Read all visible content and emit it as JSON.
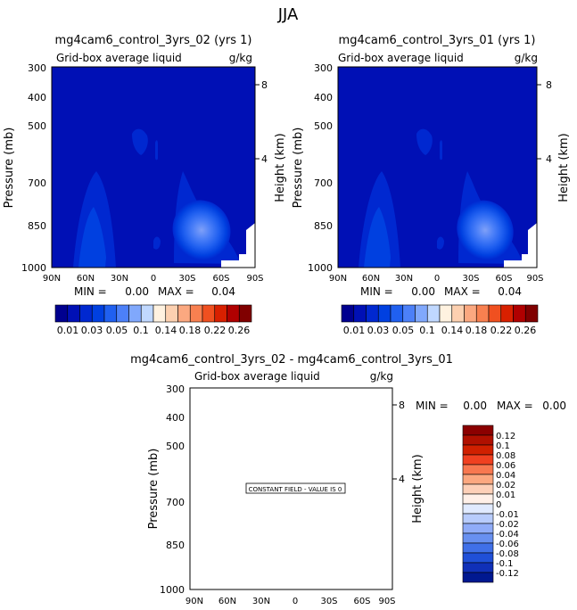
{
  "figure": {
    "title": "JJA",
    "diff_title": "mg4cam6_control_3yrs_02 - mg4cam6_control_3yrs_01"
  },
  "colors": {
    "scale12": [
      "#00008f",
      "#0010b5",
      "#0028d0",
      "#0040e0",
      "#2060f0",
      "#4c80f8",
      "#80a8fc",
      "#c0d8ff",
      "#fff2e0",
      "#fcd0b0",
      "#fba880",
      "#f88050",
      "#f05020",
      "#d82000",
      "#b00000",
      "#800000"
    ],
    "diff": [
      "#8b0000",
      "#b01000",
      "#d02000",
      "#f04020",
      "#f87850",
      "#fca880",
      "#fdd0b8",
      "#fff0e8",
      "#e0eaff",
      "#b8ccfc",
      "#90acf8",
      "#6890f0",
      "#4070e8",
      "#2050d8",
      "#1030b8",
      "#001890"
    ]
  },
  "chart_data": [
    {
      "type": "heatmap",
      "title": "mg4cam6_control_3yrs_02 (yrs 1)",
      "subtitle": "Grid-box average liquid",
      "units": "g/kg",
      "ylabel": "Pressure (mb)",
      "y2label": "Height (km)",
      "x_ticks": [
        "90N",
        "60N",
        "30N",
        "0",
        "30S",
        "60S",
        "90S"
      ],
      "y_ticks": [
        "300",
        "400",
        "500",
        "700",
        "850",
        "1000"
      ],
      "y2_ticks": [
        "8",
        "4"
      ],
      "min_label": "MIN =",
      "min_value": "0.00",
      "max_label": "MAX =",
      "max_value": "0.04",
      "colorbar_labels": [
        "0.01",
        "0.03",
        "0.05",
        "0.1",
        "0.14",
        "0.18",
        "0.22",
        "0.26"
      ]
    },
    {
      "type": "heatmap",
      "title": "mg4cam6_control_3yrs_01 (yrs 1)",
      "subtitle": "Grid-box average liquid",
      "units": "g/kg",
      "ylabel": "Pressure (mb)",
      "y2label": "Height (km)",
      "x_ticks": [
        "90N",
        "60N",
        "30N",
        "0",
        "30S",
        "60S",
        "90S"
      ],
      "y_ticks": [
        "300",
        "400",
        "500",
        "700",
        "850",
        "1000"
      ],
      "y2_ticks": [
        "8",
        "4"
      ],
      "min_label": "MIN =",
      "min_value": "0.00",
      "max_label": "MAX =",
      "max_value": "0.04",
      "colorbar_labels": [
        "0.01",
        "0.03",
        "0.05",
        "0.1",
        "0.14",
        "0.18",
        "0.22",
        "0.26"
      ]
    },
    {
      "type": "heatmap",
      "title": "",
      "subtitle": "Grid-box average liquid",
      "units": "g/kg",
      "ylabel": "Pressure (mb)",
      "y2label": "Height (km)",
      "x_ticks": [
        "90N",
        "60N",
        "30N",
        "0",
        "30S",
        "60S",
        "90S"
      ],
      "y_ticks": [
        "300",
        "400",
        "500",
        "700",
        "850",
        "1000"
      ],
      "y2_ticks": [
        "8",
        "4"
      ],
      "min_label": "MIN =",
      "min_value": "0.00",
      "max_label": "MAX =",
      "max_value": "0.00",
      "annotation": "CONSTANT FIELD - VALUE IS 0",
      "colorbar_labels": [
        "0.12",
        "0.1",
        "0.08",
        "0.06",
        "0.04",
        "0.02",
        "0.01",
        "0",
        "-0.01",
        "-0.02",
        "-0.04",
        "-0.06",
        "-0.08",
        "-0.1",
        "-0.12"
      ]
    }
  ]
}
